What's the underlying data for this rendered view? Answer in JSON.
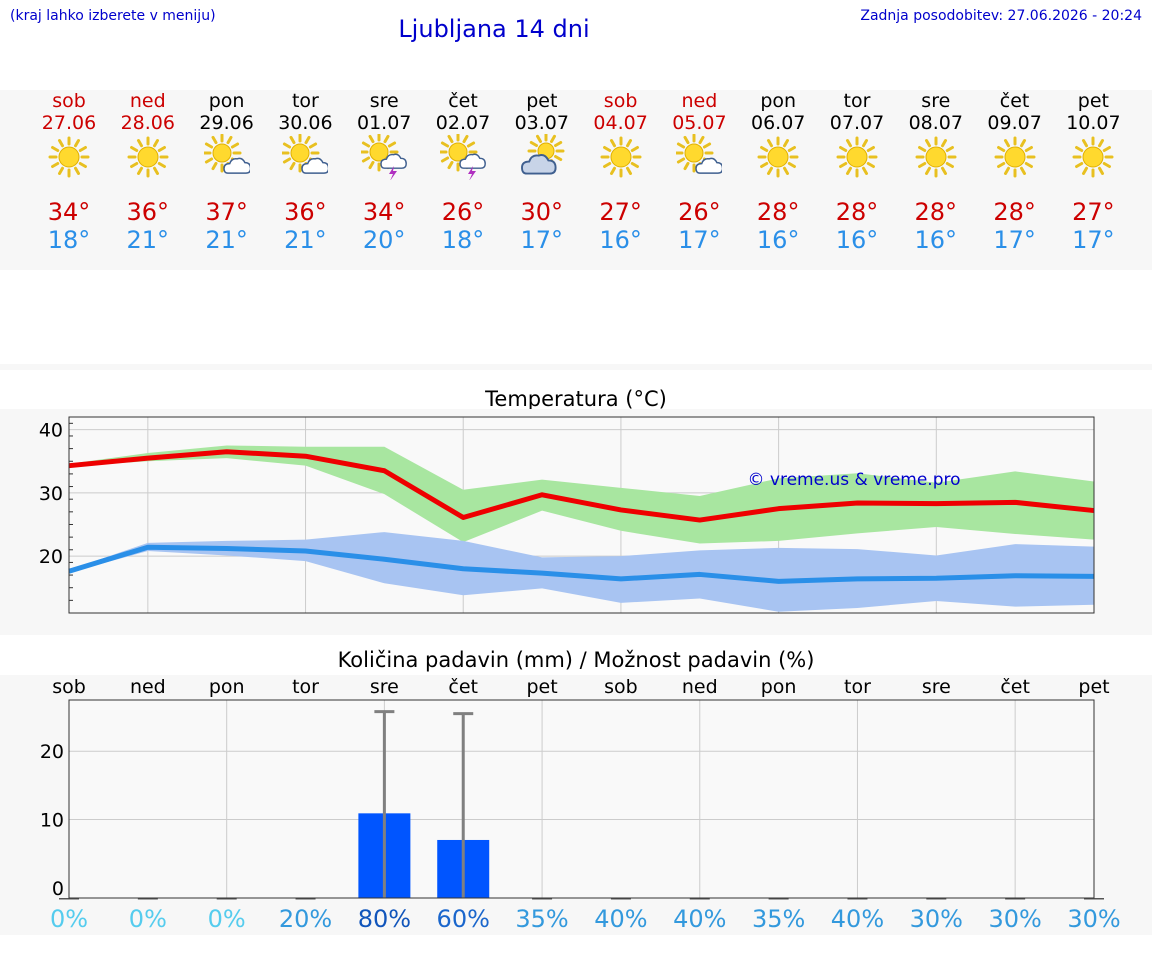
{
  "header": {
    "hint": "(kraj lahko izberete v meniju)",
    "title": "Ljubljana 14 dni",
    "updated": "Zadnja posodobitev: 27.06.2026 - 20:24"
  },
  "colors": {
    "link": "#0000cc",
    "weekend": "#cc0000",
    "tmax": "#cc0000",
    "tmin": "#2a8fe8",
    "max_line": "#ee0000",
    "max_band": "#a8e6a0",
    "min_line": "#2a8fe8",
    "min_band": "#a8c4f2",
    "bar": "#0055ff",
    "errbar": "#808080"
  },
  "days": [
    {
      "name": "sob",
      "date": "27.06",
      "weekend": true,
      "icon": "sun-icon",
      "tmax": "34°",
      "tmin": "18°"
    },
    {
      "name": "ned",
      "date": "28.06",
      "weekend": true,
      "icon": "sun-icon",
      "tmax": "36°",
      "tmin": "21°"
    },
    {
      "name": "pon",
      "date": "29.06",
      "weekend": false,
      "icon": "sun-cloud-icon",
      "tmax": "37°",
      "tmin": "21°"
    },
    {
      "name": "tor",
      "date": "30.06",
      "weekend": false,
      "icon": "sun-cloud-icon",
      "tmax": "36°",
      "tmin": "21°"
    },
    {
      "name": "sre",
      "date": "01.07",
      "weekend": false,
      "icon": "sun-storm-icon",
      "tmax": "34°",
      "tmin": "20°"
    },
    {
      "name": "čet",
      "date": "02.07",
      "weekend": false,
      "icon": "sun-storm-icon",
      "tmax": "26°",
      "tmin": "18°"
    },
    {
      "name": "pet",
      "date": "03.07",
      "weekend": false,
      "icon": "cloud-sun-icon",
      "tmax": "30°",
      "tmin": "17°"
    },
    {
      "name": "sob",
      "date": "04.07",
      "weekend": true,
      "icon": "sun-icon",
      "tmax": "27°",
      "tmin": "16°"
    },
    {
      "name": "ned",
      "date": "05.07",
      "weekend": true,
      "icon": "sun-cloud-icon",
      "tmax": "26°",
      "tmin": "17°"
    },
    {
      "name": "pon",
      "date": "06.07",
      "weekend": false,
      "icon": "sun-icon",
      "tmax": "28°",
      "tmin": "16°"
    },
    {
      "name": "tor",
      "date": "07.07",
      "weekend": false,
      "icon": "sun-icon",
      "tmax": "28°",
      "tmin": "16°"
    },
    {
      "name": "sre",
      "date": "08.07",
      "weekend": false,
      "icon": "sun-icon",
      "tmax": "28°",
      "tmin": "16°"
    },
    {
      "name": "čet",
      "date": "09.07",
      "weekend": false,
      "icon": "sun-icon",
      "tmax": "28°",
      "tmin": "17°"
    },
    {
      "name": "pet",
      "date": "10.07",
      "weekend": false,
      "icon": "sun-icon",
      "tmax": "27°",
      "tmin": "17°"
    }
  ],
  "chart_data": [
    {
      "type": "line",
      "title": "Temperatura (°C)",
      "watermark": "© vreme.us & vreme.pro",
      "x_count": 14,
      "ylim": [
        11,
        42
      ],
      "yticks": [
        20,
        30,
        40
      ],
      "grid": true,
      "series": [
        {
          "role": "max",
          "values": [
            34.3,
            35.5,
            36.5,
            35.8,
            33.5,
            26.1,
            29.7,
            27.3,
            25.7,
            27.5,
            28.4,
            28.3,
            28.5,
            27.2
          ],
          "band_low": [
            34.2,
            35.0,
            35.5,
            34.3,
            29.8,
            22.2,
            27.2,
            24.0,
            22.0,
            22.4,
            23.6,
            24.6,
            23.5,
            22.6
          ],
          "band_high": [
            34.6,
            36.3,
            37.5,
            37.3,
            37.3,
            30.5,
            32.1,
            30.8,
            29.5,
            32.3,
            33.1,
            31.6,
            33.4,
            31.8
          ]
        },
        {
          "role": "min",
          "values": [
            17.6,
            21.4,
            21.2,
            20.8,
            19.5,
            18.0,
            17.3,
            16.4,
            17.1,
            16.0,
            16.4,
            16.5,
            16.9,
            16.8
          ],
          "band_low": [
            17.4,
            20.8,
            20.1,
            19.2,
            15.7,
            13.8,
            14.9,
            12.6,
            13.3,
            11.2,
            11.8,
            12.9,
            12.0,
            12.3
          ],
          "band_high": [
            17.8,
            22.1,
            22.4,
            22.6,
            23.8,
            22.4,
            19.8,
            20.0,
            20.9,
            21.3,
            21.1,
            20.1,
            21.9,
            21.5
          ]
        }
      ]
    },
    {
      "type": "bar",
      "title": "Količina padavin (mm) / Možnost padavin (%)",
      "categories": [
        "sob",
        "ned",
        "pon",
        "tor",
        "sre",
        "čet",
        "pet",
        "sob",
        "ned",
        "pon",
        "tor",
        "sre",
        "čet",
        "pet"
      ],
      "ylim": [
        -1.5,
        27.5
      ],
      "yticks": [
        0,
        10,
        20
      ],
      "grid": true,
      "values": [
        0,
        0,
        0,
        0,
        10.9,
        7.0,
        0,
        0,
        0,
        0,
        0,
        0,
        0,
        0
      ],
      "error_high": [
        0,
        0,
        0,
        0,
        25.8,
        25.5,
        0,
        0,
        0,
        0,
        0,
        0,
        0,
        0
      ],
      "probability": [
        "0%",
        "0%",
        "0%",
        "20%",
        "80%",
        "60%",
        "35%",
        "40%",
        "40%",
        "35%",
        "40%",
        "30%",
        "30%",
        "30%"
      ],
      "probability_colors": [
        "#55ccee",
        "#55ccee",
        "#55ccee",
        "#3399dd",
        "#1155bb",
        "#1a66cc",
        "#3399dd",
        "#3399dd",
        "#3399dd",
        "#3399dd",
        "#3399dd",
        "#3399dd",
        "#3399dd",
        "#3399dd"
      ]
    }
  ]
}
